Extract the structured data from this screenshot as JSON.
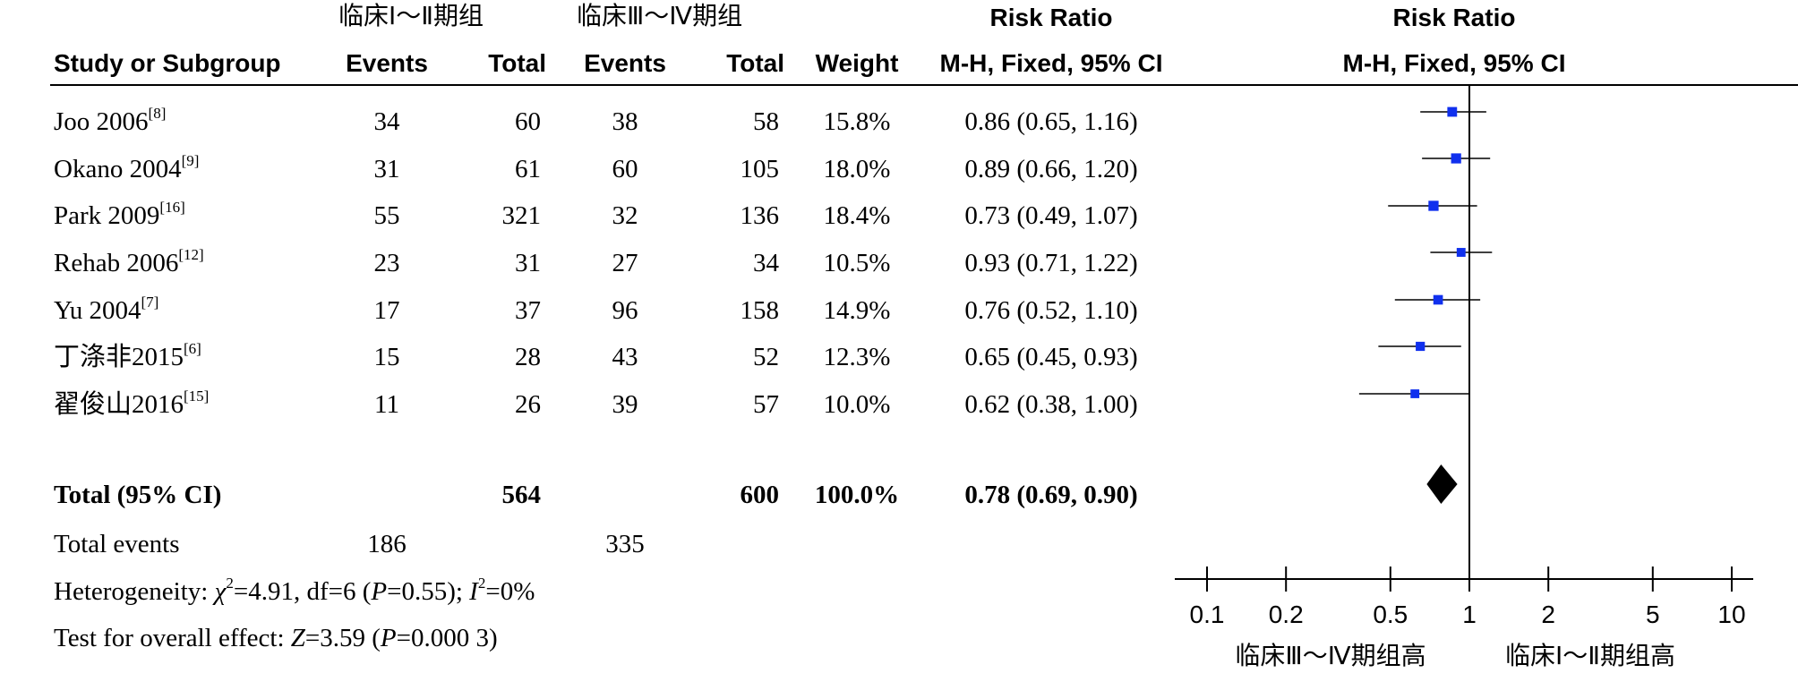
{
  "header": {
    "group1": "临床Ⅰ～Ⅱ期组",
    "group2": "临床Ⅲ～Ⅳ期组",
    "rr_title": "Risk Ratio",
    "rr_title_plot": "Risk Ratio",
    "study_col": "Study or Subgroup",
    "events1": "Events",
    "total1": "Total",
    "events2": "Events",
    "total2": "Total",
    "weight": "Weight",
    "method": "M-H, Fixed, 95% CI",
    "method_plot": "M-H, Fixed, 95% CI"
  },
  "studies": [
    {
      "name": "Joo 2006",
      "ref": "[8]",
      "e1": "34",
      "t1": "60",
      "e2": "38",
      "t2": "58",
      "weight": "15.8%",
      "ci": "0.86 (0.65, 1.16)"
    },
    {
      "name": "Okano 2004",
      "ref": "[9]",
      "e1": "31",
      "t1": "61",
      "e2": "60",
      "t2": "105",
      "weight": "18.0%",
      "ci": "0.89 (0.66, 1.20)"
    },
    {
      "name": "Park 2009",
      "ref": "[16]",
      "e1": "55",
      "t1": "321",
      "e2": "32",
      "t2": "136",
      "weight": "18.4%",
      "ci": "0.73 (0.49, 1.07)"
    },
    {
      "name": "Rehab 2006",
      "ref": "[12]",
      "e1": "23",
      "t1": "31",
      "e2": "27",
      "t2": "34",
      "weight": "10.5%",
      "ci": "0.93 (0.71, 1.22)"
    },
    {
      "name": "Yu 2004",
      "ref": "[7]",
      "e1": "17",
      "t1": "37",
      "e2": "96",
      "t2": "158",
      "weight": "14.9%",
      "ci": "0.76 (0.52, 1.10)"
    },
    {
      "name": "丁涤非2015",
      "ref": "[6]",
      "e1": "15",
      "t1": "28",
      "e2": "43",
      "t2": "52",
      "weight": "12.3%",
      "ci": "0.65 (0.45, 0.93)"
    },
    {
      "name": "翟俊山2016",
      "ref": "[15]",
      "e1": "11",
      "t1": "26",
      "e2": "39",
      "t2": "57",
      "weight": "10.0%",
      "ci": "0.62 (0.38, 1.00)"
    }
  ],
  "total": {
    "label": "Total (95% CI)",
    "t1": "564",
    "t2": "600",
    "weight": "100.0%",
    "ci": "0.78 (0.69, 0.90)"
  },
  "total_events": {
    "label": "Total events",
    "e1": "186",
    "e2": "335"
  },
  "heterogeneity": {
    "prefix": "Heterogeneity: ",
    "chi": "χ",
    "chi_rest": "=4.91, df=6 (",
    "p": "P",
    "p_rest": "=0.55); ",
    "i": "I",
    "i_rest": "=0%"
  },
  "overall": {
    "prefix": "Test for overall effect: ",
    "z": "Z",
    "z_rest": "=3.59 (",
    "p": "P",
    "p_rest": "=0.000 3)"
  },
  "axis": {
    "favours_left": "临床Ⅲ～Ⅳ期组高",
    "favours_right": "临床Ⅰ～Ⅱ期组高"
  },
  "chart_data": {
    "type": "forest",
    "scale": "log",
    "xlim": [
      0.1,
      10
    ],
    "ticks": [
      0.1,
      0.2,
      0.5,
      1,
      2,
      5,
      10
    ],
    "tick_labels": [
      "0.1",
      "0.2",
      "0.5",
      "1",
      "2",
      "5",
      "10"
    ],
    "null_value": 1,
    "marker_color": "#1030ee",
    "diamond_color": "#000000",
    "points": [
      {
        "est": 0.86,
        "lo": 0.65,
        "hi": 1.16,
        "weight": 15.8
      },
      {
        "est": 0.89,
        "lo": 0.66,
        "hi": 1.2,
        "weight": 18.0
      },
      {
        "est": 0.73,
        "lo": 0.49,
        "hi": 1.07,
        "weight": 18.4
      },
      {
        "est": 0.93,
        "lo": 0.71,
        "hi": 1.22,
        "weight": 10.5
      },
      {
        "est": 0.76,
        "lo": 0.52,
        "hi": 1.1,
        "weight": 14.9
      },
      {
        "est": 0.65,
        "lo": 0.45,
        "hi": 0.93,
        "weight": 12.3
      },
      {
        "est": 0.62,
        "lo": 0.38,
        "hi": 1.0,
        "weight": 10.0
      }
    ],
    "summary": {
      "est": 0.78,
      "lo": 0.69,
      "hi": 0.9
    }
  }
}
